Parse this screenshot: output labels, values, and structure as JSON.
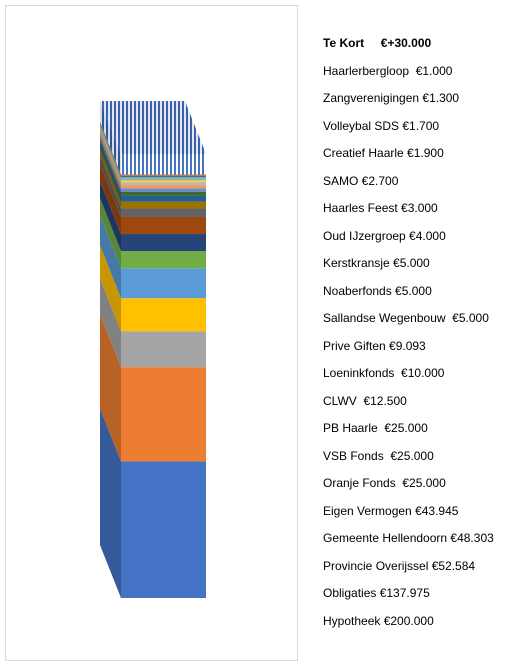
{
  "chart_data": {
    "type": "bar",
    "subtype": "stacked-3d-column",
    "title": "",
    "xlabel": "",
    "ylabel": "",
    "grid": false,
    "legend_placement": "right",
    "series": [
      {
        "label": "Hypotheek €200.000",
        "value": 200000,
        "color": "#4472c4"
      },
      {
        "label": "Obligaties €137.975",
        "value": 137975,
        "color": "#ed7d31"
      },
      {
        "label": "Provincie Overijssel €52.584",
        "value": 52584,
        "color": "#a5a5a5"
      },
      {
        "label": "Gemeente Hellendoorn €48.303",
        "value": 48303,
        "color": "#ffc000"
      },
      {
        "label": "Eigen Vermogen €43.945",
        "value": 43945,
        "color": "#5b9bd5"
      },
      {
        "label": "Oranje Fonds  €25.000",
        "value": 25000,
        "color": "#70ad47"
      },
      {
        "label": "VSB Fonds  €25.000",
        "value": 25000,
        "color": "#264478"
      },
      {
        "label": "PB Haarle  €25.000",
        "value": 25000,
        "color": "#9e480e"
      },
      {
        "label": "CLWV  €12.500",
        "value": 12500,
        "color": "#636363"
      },
      {
        "label": "Loeninkfonds  €10.000",
        "value": 10000,
        "color": "#997300"
      },
      {
        "label": "Prive Giften €9.093",
        "value": 9093,
        "color": "#255e91"
      },
      {
        "label": "Sallandse Wegenbouw  €5.000",
        "value": 5000,
        "color": "#43682b"
      },
      {
        "label": "Noaberfonds €5.000",
        "value": 5000,
        "color": "#698ed0"
      },
      {
        "label": "Kerstkransje €5.000",
        "value": 5000,
        "color": "#f1975a"
      },
      {
        "label": "Oud IJzergroep €4.000",
        "value": 4000,
        "color": "#b7b7b7"
      },
      {
        "label": "Haarles Feest €3.000",
        "value": 3000,
        "color": "#ffcd33"
      },
      {
        "label": "SAMO €2.700",
        "value": 2700,
        "color": "#7cafdd"
      },
      {
        "label": "Creatief Haarle €1.900",
        "value": 1900,
        "color": "#8cc168"
      },
      {
        "label": "Volleybal SDS €1.700",
        "value": 1700,
        "color": "#335aa1"
      },
      {
        "label": "Zangverenigingen €1.300",
        "value": 1300,
        "color": "#d26012"
      },
      {
        "label": "Haarlerbergloop  €1.000",
        "value": 1000,
        "color": "#848484"
      },
      {
        "label": "Te Kort     €+30.000",
        "value": 30000,
        "color": "#4472c4",
        "pattern": "vertical-stripes",
        "bold": true
      }
    ]
  }
}
